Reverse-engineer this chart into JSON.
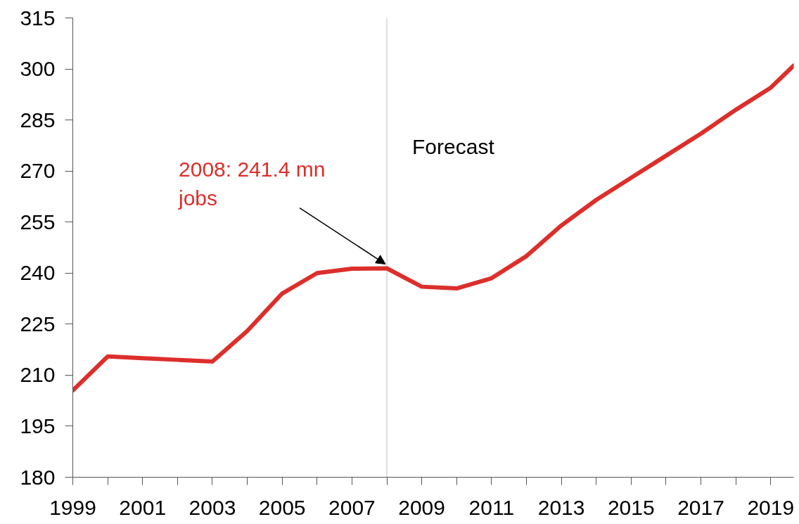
{
  "chart_data": {
    "type": "line",
    "x": [
      1999,
      2000,
      2001,
      2002,
      2003,
      2004,
      2005,
      2006,
      2007,
      2008,
      2009,
      2010,
      2011,
      2012,
      2013,
      2014,
      2015,
      2016,
      2017,
      2018,
      2019,
      2019.66
    ],
    "series": [
      {
        "color": "#dc2f2b",
        "values": [
          205.5,
          215.5,
          215,
          214.5,
          214,
          223,
          234,
          240,
          241.3,
          241.4,
          236,
          235.5,
          238.5,
          245,
          254,
          261.5,
          268,
          274.5,
          281,
          288,
          294.5,
          301
        ]
      }
    ],
    "xlim": [
      1999,
      2019.66
    ],
    "xticks": [
      1999,
      {
        "value": 2000,
        "label": null
      },
      2001,
      {
        "value": 2002,
        "label": null
      },
      2003,
      {
        "value": 2004,
        "label": null
      },
      2005,
      {
        "value": 2006,
        "label": null
      },
      2007,
      {
        "value": 2008,
        "label": null
      },
      2009,
      {
        "value": 2010,
        "label": null
      },
      2011,
      {
        "value": 2012,
        "label": null
      },
      2013,
      {
        "value": 2014,
        "label": null
      },
      2015,
      {
        "value": 2016,
        "label": null
      },
      2017,
      {
        "value": 2018,
        "label": null
      },
      2019
    ],
    "ylim": [
      180,
      315
    ],
    "yticks": [
      180,
      195,
      210,
      225,
      240,
      255,
      270,
      285,
      300,
      315
    ],
    "ref_lines": [
      {
        "axis": "x",
        "value": 2008,
        "label": "Forecast",
        "color": "#c8c8c8"
      }
    ],
    "annotations": [
      {
        "text": "2008: 241.4 mn\njobs",
        "x": 2008,
        "y": 241.4
      }
    ]
  }
}
